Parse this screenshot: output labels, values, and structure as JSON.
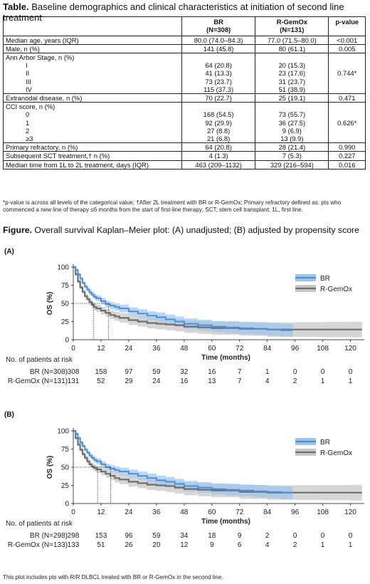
{
  "table": {
    "title_bold": "Table.",
    "title_rest": " Baseline demographics and clinical characteristics at initiation of second line treatment",
    "col_br": "BR",
    "col_br_n": "(N=308)",
    "col_rg": "R-GemOx",
    "col_rg_n": "(N=131)",
    "col_p": "p-value",
    "rows": [
      {
        "label": "Median age, years (IQR)",
        "br": "80.0 (74.0–84.3)",
        "rg": "77.0 (71.5–80.0)",
        "p": "<0.001"
      },
      {
        "label": "Male, n (%)",
        "br": "141 (45.8)",
        "rg": "80 (61.1)",
        "p": "0.005"
      },
      {
        "label": "Ann Arbor Stage, n (%)",
        "sub": [
          {
            "label": "I",
            "br": "64 (20.8)",
            "rg": "20 (15.3)"
          },
          {
            "label": "II",
            "br": "41 (13.3)",
            "rg": "23 (17.6)"
          },
          {
            "label": "III",
            "br": "73 (23.7)",
            "rg": "31 (23.7)"
          },
          {
            "label": "IV",
            "br": "115 (37.3)",
            "rg": "51 (38.9)"
          }
        ],
        "p": "0.744*"
      },
      {
        "label": "Extranodal disease, n (%)",
        "br": "70 (22.7)",
        "rg": "25 (19.1)",
        "p": "0.471"
      },
      {
        "label": "CCI score, n (%)",
        "sub": [
          {
            "label": "0",
            "br": "168 (54.5)",
            "rg": "73 (55.7)"
          },
          {
            "label": "1",
            "br": "92 (29.9)",
            "rg": "36 (27.5)"
          },
          {
            "label": "2",
            "br": "27 (8.8)",
            "rg": "9 (6.9)"
          },
          {
            "label": "≥3",
            "br": "21 (6.8)",
            "rg": "13 (9.9)"
          }
        ],
        "p": "0.626*"
      },
      {
        "label": "Primary refractory, n (%)",
        "br": "64 (20.8)",
        "rg": "28 (21.4)",
        "p": "0.990"
      },
      {
        "label": "Subsequent SCT treatment,† n (%)",
        "br": "4 (1.3)",
        "rg": "7 (5.3)",
        "p": "0.227"
      },
      {
        "label": "Median time from 1L to 2L treatment, days (IQR)",
        "br": "463 (209–1132)",
        "rg": "329 (216–594)",
        "p": "0.016"
      }
    ],
    "footnote": "*p-value is across all levels of the categorical value; †After 2L treatment with BR or R-GemOx; Primary refractory defined as: pts who commenced a new line of therapy ≤6 months from the start of first-line therapy; SCT, stem cell transplant; 1L, first line."
  },
  "figure": {
    "title_bold": "Figure.",
    "title_rest": " Overall survival Kaplan–Meier plot: (A) unadjusted; (B) adjusted by propensity score",
    "bottom_note": "This plot includes pts with R/R DLBCL treated with BR or R-GemOx in the second line.",
    "colors": {
      "br": "#4a90d9",
      "br_band": "#9ec5ec",
      "rg": "#6e6e6e",
      "rg_band": "#c8c8c8"
    }
  },
  "chart_data": [
    {
      "type": "line",
      "panel": "(A)",
      "xlabel": "Time (months)",
      "ylabel": "OS (%)",
      "xlim": [
        0,
        126
      ],
      "ylim": [
        0,
        100
      ],
      "xticks": [
        0,
        12,
        24,
        36,
        48,
        60,
        72,
        84,
        96,
        108,
        120
      ],
      "yticks": [
        0,
        25,
        50,
        75,
        100
      ],
      "legend": "top-right",
      "series": [
        {
          "name": "BR",
          "x": [
            0,
            1,
            2,
            3,
            4,
            5,
            6,
            7,
            8,
            9,
            10,
            12,
            14,
            16,
            18,
            20,
            24,
            28,
            32,
            36,
            40,
            44,
            48,
            54,
            60,
            66,
            72,
            78,
            84,
            90,
            95
          ],
          "y": [
            100,
            96,
            90,
            84,
            78,
            73,
            69,
            65,
            62,
            59,
            57,
            53,
            49,
            47,
            45,
            43,
            39,
            36,
            33,
            31,
            28,
            25,
            22,
            20,
            18,
            17,
            16,
            15,
            14,
            13,
            13
          ]
        },
        {
          "name": "R-GemOx",
          "x": [
            0,
            1,
            2,
            3,
            4,
            5,
            6,
            7,
            8,
            9,
            10,
            12,
            14,
            16,
            18,
            20,
            24,
            28,
            32,
            36,
            40,
            44,
            48,
            54,
            60,
            72,
            84,
            96,
            108,
            120,
            125
          ],
          "y": [
            100,
            90,
            80,
            72,
            66,
            60,
            56,
            52,
            48,
            45,
            43,
            40,
            37,
            34,
            32,
            30,
            27,
            25,
            23,
            22,
            21,
            20,
            18,
            17,
            16,
            15,
            14,
            14,
            14,
            14,
            14
          ]
        }
      ],
      "median_markers": {
        "x": [
          8.7,
          15.2
        ],
        "y": 50
      },
      "at_risk": {
        "heading": "No. of patients at risk",
        "times": [
          0,
          12,
          24,
          36,
          48,
          60,
          72,
          84,
          96,
          108,
          120
        ],
        "rows": [
          {
            "label": "BR (N=308)",
            "values": [
              "308",
              "158",
              "97",
              "59",
              "32",
              "16",
              "7",
              "1",
              "0",
              "0",
              "0"
            ]
          },
          {
            "label": "R-GemOx (N=131)",
            "values": [
              "131",
              "52",
              "29",
              "24",
              "16",
              "13",
              "7",
              "4",
              "2",
              "1",
              "1"
            ]
          }
        ]
      }
    },
    {
      "type": "line",
      "panel": "(B)",
      "xlabel": "Time (months)",
      "ylabel": "OS (%)",
      "xlim": [
        0,
        126
      ],
      "ylim": [
        0,
        100
      ],
      "xticks": [
        0,
        12,
        24,
        36,
        48,
        60,
        72,
        84,
        96,
        108,
        120
      ],
      "yticks": [
        0,
        25,
        50,
        75,
        100
      ],
      "legend": "top-right",
      "series": [
        {
          "name": "BR",
          "x": [
            0,
            1,
            2,
            3,
            4,
            5,
            6,
            7,
            8,
            9,
            10,
            12,
            14,
            16,
            18,
            20,
            24,
            28,
            32,
            36,
            40,
            44,
            48,
            54,
            60,
            66,
            72,
            78,
            84,
            90,
            95
          ],
          "y": [
            100,
            96,
            90,
            84,
            79,
            74,
            70,
            66,
            63,
            60,
            58,
            54,
            50,
            48,
            46,
            44,
            41,
            38,
            35,
            32,
            30,
            27,
            24,
            22,
            20,
            19,
            18,
            17,
            16,
            15,
            15
          ]
        },
        {
          "name": "R-GemOx",
          "x": [
            0,
            1,
            2,
            3,
            4,
            5,
            6,
            7,
            8,
            9,
            10,
            12,
            14,
            16,
            18,
            20,
            24,
            28,
            32,
            36,
            40,
            44,
            48,
            54,
            60,
            72,
            84,
            96,
            108,
            120,
            125
          ],
          "y": [
            100,
            90,
            81,
            74,
            68,
            63,
            58,
            54,
            51,
            49,
            47,
            44,
            41,
            38,
            35,
            33,
            30,
            28,
            26,
            25,
            24,
            22,
            20,
            19,
            18,
            16,
            15,
            15,
            15,
            15,
            15
          ]
        }
      ],
      "median_markers": {
        "x": [
          10.5,
          16.2
        ],
        "y": 50
      },
      "at_risk": {
        "heading": "No. of patients at risk",
        "times": [
          0,
          12,
          24,
          36,
          48,
          60,
          72,
          84,
          96,
          108,
          120
        ],
        "rows": [
          {
            "label": "BR (N=298)",
            "values": [
              "298",
              "153",
              "96",
              "59",
              "34",
              "18",
              "9",
              "2",
              "0",
              "0",
              "0"
            ]
          },
          {
            "label": "R-GemOx (N=133)",
            "values": [
              "133",
              "51",
              "26",
              "20",
              "12",
              "9",
              "6",
              "4",
              "2",
              "1",
              "1"
            ]
          }
        ]
      }
    }
  ]
}
